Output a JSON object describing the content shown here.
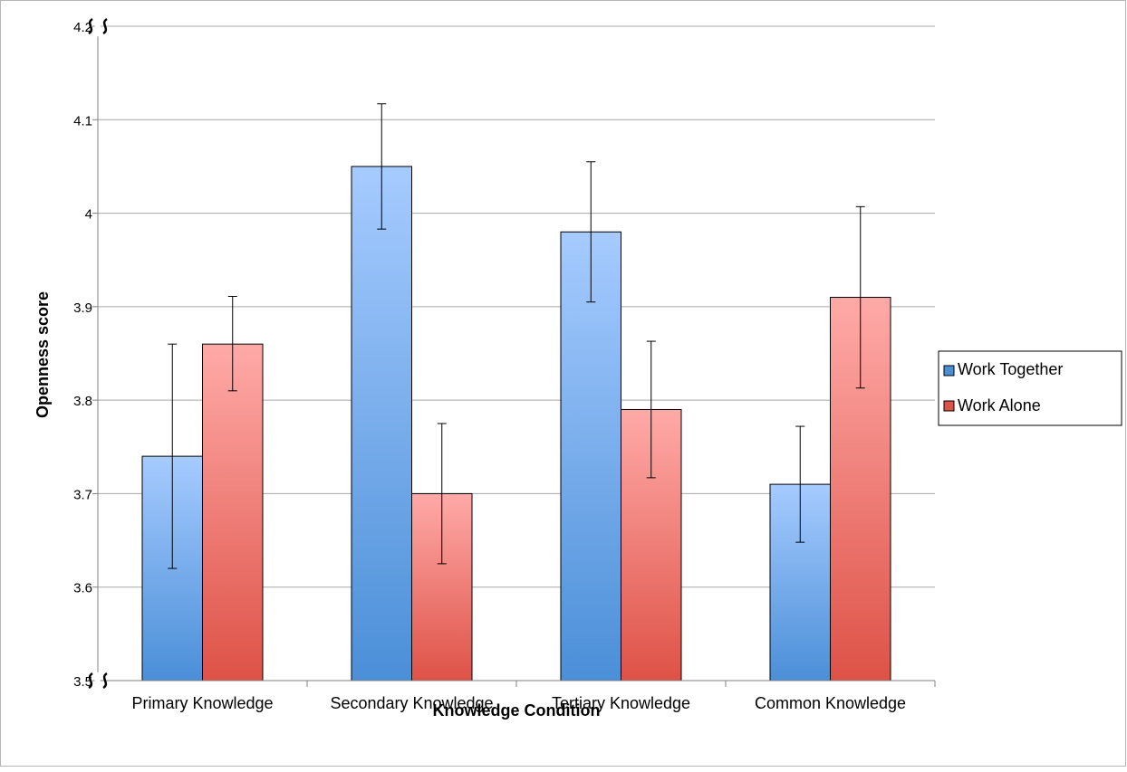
{
  "chart_data": {
    "type": "bar",
    "title": "",
    "xlabel": "Knowledge Condition",
    "ylabel": "Openness score",
    "categories": [
      "Primary Knowledge",
      "Secondary Knowledge",
      "Tertiary Knowledge",
      "Common Knowledge"
    ],
    "series": [
      {
        "name": "Work Together",
        "values": [
          3.74,
          4.05,
          3.98,
          3.71
        ],
        "error_low": [
          3.62,
          3.983,
          3.905,
          3.648
        ],
        "error_high": [
          3.86,
          4.117,
          4.055,
          3.772
        ],
        "color_top": "#a6cbff",
        "color_bottom": "#4b8fd8"
      },
      {
        "name": "Work Alone",
        "values": [
          3.86,
          3.7,
          3.79,
          3.91
        ],
        "error_low": [
          3.81,
          3.625,
          3.717,
          3.813
        ],
        "error_high": [
          3.911,
          3.775,
          3.863,
          4.007
        ],
        "color_top": "#ffaaa8",
        "color_bottom": "#de5247"
      }
    ],
    "ylim": [
      3.5,
      4.2
    ],
    "yticks": [
      "3.5",
      "3.6",
      "3.7",
      "3.8",
      "3.9",
      "4",
      "4.1",
      "4.2"
    ],
    "axis_break": true,
    "grid": true,
    "legend_position": "right"
  }
}
